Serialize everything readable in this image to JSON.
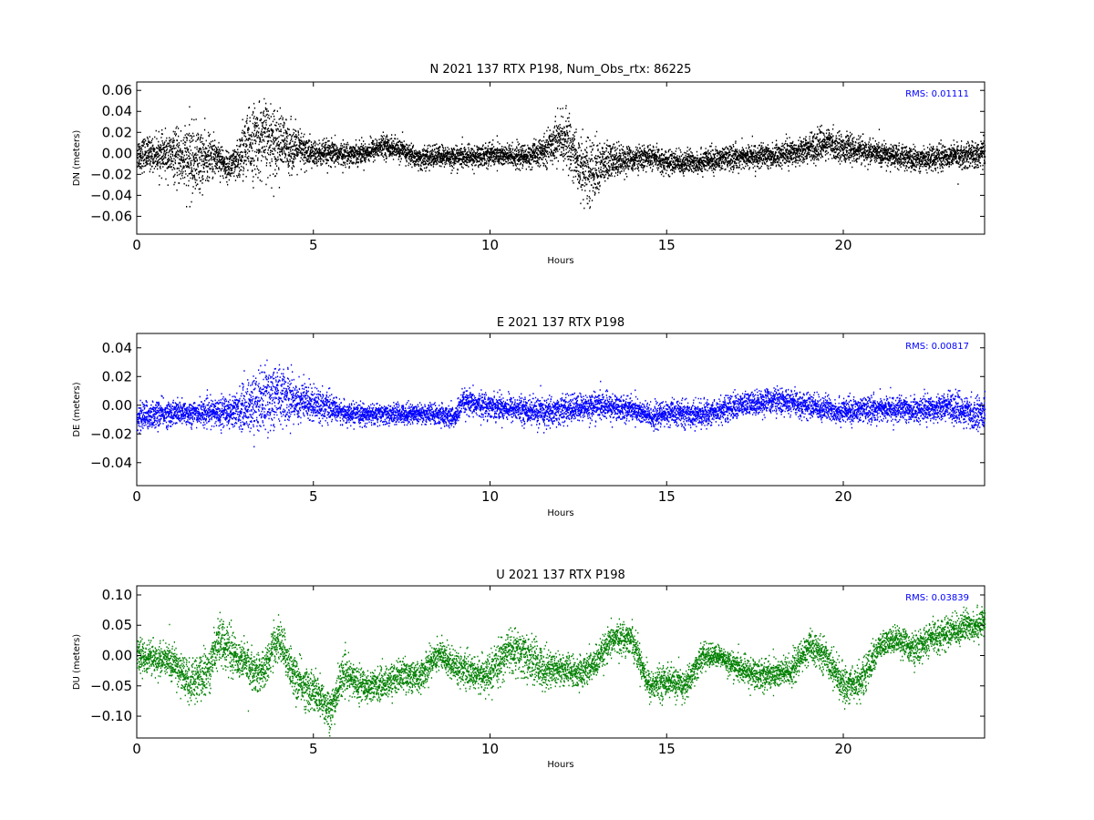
{
  "chart_data": [
    {
      "type": "scatter",
      "title": "N 2021 137 RTX  P198, Num_Obs_rtx: 86225",
      "xlabel": "Hours",
      "ylabel": "DN (meters)",
      "xlim": [
        0,
        24
      ],
      "ylim": [
        -0.077,
        0.068
      ],
      "xticks": [
        0,
        5,
        10,
        15,
        20
      ],
      "yticks": [
        -0.06,
        -0.04,
        -0.02,
        0.0,
        0.02,
        0.04,
        0.06
      ],
      "ytick_labels": [
        "−0.06",
        "−0.04",
        "−0.02",
        "0.00",
        "0.02",
        "0.04",
        "0.06"
      ],
      "color": "#000000",
      "annotation": "RMS:  0.01111",
      "annotation_color": "#0000ff",
      "legend": "none",
      "grid": false,
      "envelope": {
        "x": [
          0,
          0.5,
          1.0,
          1.3,
          1.5,
          1.8,
          2.0,
          2.3,
          2.5,
          2.8,
          3.0,
          3.3,
          3.6,
          3.9,
          4.2,
          4.6,
          5.0,
          5.5,
          6.0,
          6.5,
          7.0,
          7.5,
          8.0,
          8.5,
          9.0,
          9.5,
          10.0,
          10.5,
          11.0,
          11.5,
          11.9,
          12.2,
          12.5,
          12.8,
          13.2,
          13.6,
          14.0,
          14.5,
          15.0,
          15.5,
          16.0,
          17.0,
          18.0,
          19.0,
          19.5,
          20.0,
          21.0,
          22.0,
          23.0,
          24.0
        ],
        "center": [
          0.0,
          0.0,
          -0.002,
          -0.005,
          -0.006,
          -0.006,
          -0.004,
          -0.002,
          -0.012,
          -0.01,
          0.004,
          0.012,
          0.015,
          0.013,
          0.008,
          0.004,
          0.0,
          0.0,
          0.0,
          0.002,
          0.008,
          0.003,
          -0.005,
          -0.002,
          -0.003,
          -0.003,
          0.0,
          -0.002,
          -0.003,
          0.002,
          0.015,
          0.012,
          -0.01,
          -0.018,
          -0.01,
          -0.005,
          -0.005,
          -0.003,
          -0.008,
          -0.008,
          -0.007,
          -0.003,
          -0.002,
          0.005,
          0.01,
          0.006,
          0.0,
          -0.005,
          -0.002,
          0.0
        ],
        "spread": [
          0.018,
          0.018,
          0.025,
          0.035,
          0.04,
          0.035,
          0.025,
          0.02,
          0.015,
          0.02,
          0.035,
          0.04,
          0.04,
          0.038,
          0.03,
          0.022,
          0.015,
          0.014,
          0.012,
          0.012,
          0.012,
          0.012,
          0.012,
          0.012,
          0.012,
          0.012,
          0.013,
          0.013,
          0.013,
          0.015,
          0.025,
          0.03,
          0.035,
          0.035,
          0.025,
          0.018,
          0.013,
          0.013,
          0.013,
          0.013,
          0.013,
          0.013,
          0.013,
          0.015,
          0.017,
          0.015,
          0.013,
          0.013,
          0.013,
          0.015
        ]
      }
    },
    {
      "type": "scatter",
      "title": "E 2021 137 RTX  P198",
      "xlabel": "Hours",
      "ylabel": "DE (meters)",
      "xlim": [
        0,
        24
      ],
      "ylim": [
        -0.056,
        0.05
      ],
      "xticks": [
        0,
        5,
        10,
        15,
        20
      ],
      "yticks": [
        -0.04,
        -0.02,
        0.0,
        0.02,
        0.04
      ],
      "ytick_labels": [
        "−0.04",
        "−0.02",
        "0.00",
        "0.02",
        "0.04"
      ],
      "color": "#0000ff",
      "annotation": "RMS:  0.00817",
      "annotation_color": "#0000ff",
      "legend": "none",
      "grid": false,
      "envelope": {
        "x": [
          0,
          0.5,
          1.0,
          2.0,
          2.8,
          3.2,
          3.6,
          4.0,
          4.5,
          5.0,
          5.5,
          6.0,
          7.0,
          8.0,
          9.0,
          9.2,
          10.0,
          11.0,
          11.5,
          12.0,
          13.0,
          14.0,
          14.6,
          15.0,
          16.0,
          17.0,
          18.0,
          19.0,
          20.0,
          21.0,
          22.0,
          23.0,
          23.6,
          24.0
        ],
        "center": [
          -0.008,
          -0.006,
          -0.005,
          -0.005,
          -0.003,
          0.0,
          0.005,
          0.008,
          0.004,
          0.002,
          -0.002,
          -0.006,
          -0.006,
          -0.005,
          -0.008,
          0.002,
          0.0,
          -0.003,
          -0.005,
          -0.003,
          0.0,
          -0.002,
          -0.008,
          -0.005,
          -0.006,
          0.0,
          0.004,
          0.0,
          -0.004,
          -0.002,
          -0.003,
          0.0,
          -0.006,
          -0.003
        ],
        "spread": [
          0.012,
          0.011,
          0.01,
          0.01,
          0.014,
          0.022,
          0.026,
          0.025,
          0.018,
          0.014,
          0.01,
          0.008,
          0.008,
          0.008,
          0.009,
          0.01,
          0.01,
          0.01,
          0.013,
          0.011,
          0.011,
          0.01,
          0.01,
          0.01,
          0.01,
          0.01,
          0.01,
          0.01,
          0.01,
          0.01,
          0.01,
          0.011,
          0.013,
          0.012
        ]
      }
    },
    {
      "type": "scatter",
      "title": "U 2021 137 RTX  P198",
      "xlabel": "Hours",
      "ylabel": "DU (meters)",
      "xlim": [
        0,
        24
      ],
      "ylim": [
        -0.136,
        0.115
      ],
      "xticks": [
        0,
        5,
        10,
        15,
        20
      ],
      "yticks": [
        -0.1,
        -0.05,
        0.0,
        0.05,
        0.1
      ],
      "ytick_labels": [
        "−0.10",
        "−0.05",
        "0.00",
        "0.05",
        "0.10"
      ],
      "color": "#008000",
      "annotation": "RMS:  0.03839",
      "annotation_color": "#0000ff",
      "legend": "none",
      "grid": false,
      "envelope": {
        "x": [
          0,
          0.5,
          1.0,
          1.5,
          2.0,
          2.3,
          2.8,
          3.5,
          4.0,
          4.5,
          5.0,
          5.5,
          5.8,
          6.5,
          7.0,
          7.5,
          8.0,
          8.5,
          9.0,
          9.5,
          10.0,
          10.5,
          11.0,
          11.5,
          12.0,
          12.5,
          13.0,
          13.5,
          14.0,
          14.5,
          15.0,
          15.5,
          16.0,
          16.5,
          17.0,
          17.5,
          18.0,
          18.5,
          19.0,
          19.5,
          20.0,
          20.5,
          21.0,
          21.5,
          22.0,
          22.5,
          23.0,
          23.5,
          24.0
        ],
        "center": [
          0.0,
          -0.005,
          -0.01,
          -0.045,
          -0.025,
          0.03,
          0.0,
          -0.03,
          0.03,
          -0.04,
          -0.06,
          -0.09,
          -0.03,
          -0.05,
          -0.045,
          -0.03,
          -0.035,
          0.005,
          -0.015,
          -0.03,
          -0.03,
          0.01,
          0.0,
          -0.02,
          -0.02,
          -0.03,
          -0.01,
          0.03,
          0.03,
          -0.05,
          -0.04,
          -0.05,
          0.0,
          0.0,
          -0.02,
          -0.03,
          -0.03,
          -0.025,
          0.015,
          0.0,
          -0.05,
          -0.04,
          0.015,
          0.03,
          0.01,
          0.03,
          0.04,
          0.05,
          0.055
        ],
        "spread": [
          0.03,
          0.03,
          0.035,
          0.04,
          0.045,
          0.045,
          0.04,
          0.035,
          0.04,
          0.04,
          0.04,
          0.04,
          0.035,
          0.03,
          0.03,
          0.03,
          0.03,
          0.03,
          0.03,
          0.03,
          0.035,
          0.04,
          0.045,
          0.04,
          0.03,
          0.03,
          0.03,
          0.03,
          0.03,
          0.03,
          0.03,
          0.03,
          0.025,
          0.02,
          0.025,
          0.03,
          0.03,
          0.03,
          0.03,
          0.03,
          0.035,
          0.035,
          0.025,
          0.025,
          0.03,
          0.03,
          0.03,
          0.03,
          0.03
        ]
      }
    }
  ]
}
